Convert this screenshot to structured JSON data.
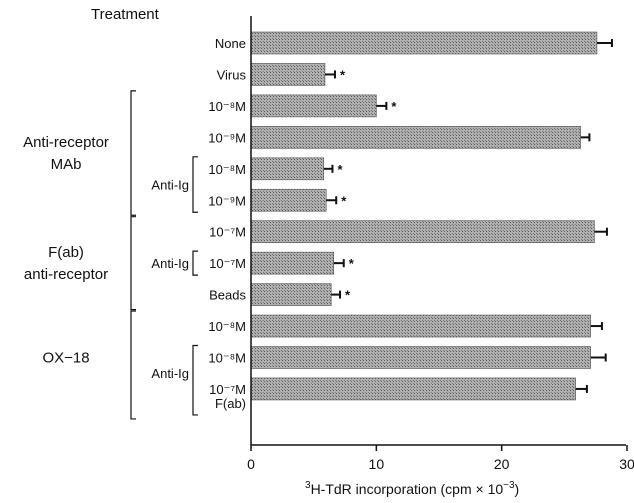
{
  "chart_data": {
    "type": "bar",
    "orientation": "horizontal",
    "header": "Treatment",
    "xlabel_main": "H-TdR incorporation (cpm × 10",
    "xlabel_sup1": "3",
    "xlabel_sup2": "−3",
    "xlabel_close": ")",
    "xlim": [
      0,
      30
    ],
    "xticks": [
      "0",
      "10",
      "20",
      "30"
    ],
    "grid": false,
    "bar_color": "#9a9a9a",
    "bars": [
      {
        "label": "None",
        "value": 27.6,
        "error": 1.2,
        "significant": false
      },
      {
        "label": "Virus",
        "value": 5.9,
        "error": 0.8,
        "significant": true
      },
      {
        "label": "10⁻⁸M",
        "value": 10.0,
        "error": 0.8,
        "significant": true
      },
      {
        "label": "10⁻⁹M",
        "value": 26.3,
        "error": 0.7,
        "significant": false
      },
      {
        "label": "10⁻⁸M",
        "value": 5.8,
        "error": 0.7,
        "significant": true
      },
      {
        "label": "10⁻⁹M",
        "value": 6.0,
        "error": 0.8,
        "significant": true
      },
      {
        "label": "10⁻⁷M",
        "value": 27.4,
        "error": 1.0,
        "significant": false
      },
      {
        "label": "10⁻⁷M",
        "value": 6.6,
        "error": 0.8,
        "significant": true
      },
      {
        "label": "Beads",
        "value": 6.4,
        "error": 0.7,
        "significant": true
      },
      {
        "label": "10⁻⁸M",
        "value": 27.1,
        "error": 0.9,
        "significant": false
      },
      {
        "label": "10⁻⁸M",
        "value": 27.1,
        "error": 1.2,
        "significant": false
      },
      {
        "label": "10⁻⁷M",
        "value": 25.9,
        "error": 0.9,
        "significant": false
      }
    ],
    "significance_marker": "*",
    "groups": [
      {
        "lines": [
          "Anti-receptor",
          "MAb"
        ]
      },
      {
        "lines": [
          "F(ab)",
          "anti-receptor"
        ]
      },
      {
        "lines": [
          "OX−18"
        ]
      }
    ],
    "sub_label": "Anti-Ig",
    "extra_label": "F(ab)"
  }
}
